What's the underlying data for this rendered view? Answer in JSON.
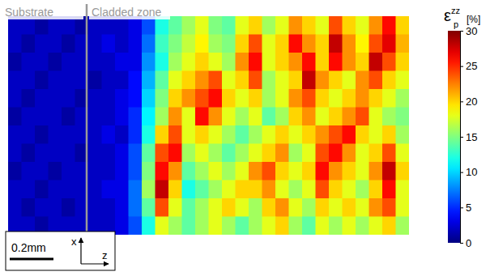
{
  "chart_data": {
    "type": "heatmap",
    "tick_labels": false,
    "cells": [
      [
        2,
        2,
        1,
        2,
        2,
        1,
        2,
        2,
        2,
        3,
        6,
        12,
        14,
        16,
        18,
        15,
        14,
        18,
        20,
        16,
        18,
        22,
        20,
        18,
        24,
        20,
        18,
        22,
        26,
        20
      ],
      [
        2,
        1,
        2,
        2,
        1,
        2,
        2,
        3,
        2,
        3,
        7,
        13,
        15,
        17,
        19,
        16,
        15,
        20,
        24,
        18,
        20,
        26,
        22,
        20,
        28,
        22,
        19,
        24,
        27,
        21
      ],
      [
        1,
        2,
        2,
        1,
        2,
        2,
        2,
        2,
        3,
        3,
        8,
        12,
        16,
        18,
        20,
        18,
        16,
        22,
        26,
        18,
        20,
        22,
        26,
        20,
        26,
        22,
        20,
        28,
        24,
        20
      ],
      [
        2,
        2,
        1,
        2,
        2,
        2,
        1,
        2,
        2,
        4,
        9,
        14,
        18,
        20,
        22,
        24,
        18,
        20,
        24,
        16,
        18,
        20,
        28,
        22,
        20,
        18,
        22,
        24,
        20,
        18
      ],
      [
        2,
        1,
        2,
        2,
        2,
        1,
        2,
        2,
        3,
        4,
        10,
        15,
        20,
        22,
        24,
        26,
        20,
        18,
        20,
        16,
        18,
        22,
        24,
        20,
        18,
        20,
        22,
        20,
        18,
        16
      ],
      [
        1,
        2,
        2,
        2,
        1,
        2,
        2,
        2,
        3,
        5,
        11,
        16,
        22,
        18,
        26,
        22,
        18,
        16,
        18,
        14,
        16,
        20,
        22,
        18,
        20,
        22,
        24,
        18,
        16,
        15
      ],
      [
        2,
        2,
        1,
        2,
        2,
        2,
        2,
        3,
        2,
        5,
        12,
        20,
        24,
        18,
        20,
        18,
        16,
        14,
        16,
        18,
        20,
        18,
        20,
        22,
        24,
        26,
        20,
        18,
        20,
        16
      ],
      [
        2,
        1,
        2,
        2,
        2,
        1,
        2,
        2,
        3,
        6,
        14,
        24,
        26,
        16,
        18,
        16,
        14,
        16,
        18,
        20,
        22,
        16,
        18,
        24,
        26,
        22,
        18,
        20,
        24,
        18
      ],
      [
        1,
        2,
        2,
        1,
        2,
        2,
        2,
        2,
        3,
        6,
        15,
        26,
        22,
        14,
        16,
        18,
        16,
        18,
        22,
        24,
        20,
        18,
        20,
        26,
        22,
        20,
        18,
        22,
        28,
        20
      ],
      [
        2,
        2,
        1,
        2,
        2,
        2,
        2,
        3,
        3,
        7,
        16,
        28,
        20,
        12,
        14,
        16,
        18,
        20,
        20,
        22,
        18,
        16,
        18,
        24,
        20,
        18,
        16,
        20,
        26,
        18
      ],
      [
        2,
        1,
        2,
        2,
        1,
        2,
        2,
        2,
        3,
        7,
        14,
        24,
        18,
        14,
        16,
        18,
        20,
        18,
        16,
        20,
        22,
        18,
        16,
        20,
        18,
        20,
        18,
        22,
        24,
        18
      ],
      [
        2,
        2,
        1,
        2,
        2,
        2,
        2,
        2,
        3,
        6,
        12,
        18,
        16,
        14,
        16,
        18,
        16,
        14,
        16,
        18,
        20,
        16,
        14,
        18,
        16,
        18,
        16,
        18,
        20,
        16
      ]
    ],
    "colorbar_range": [
      0,
      30
    ],
    "colorbar_ticks": [
      0,
      5,
      10,
      15,
      20,
      25,
      30
    ],
    "colorbar_title": {
      "base": "ε",
      "sub": "p",
      "sup": "zz",
      "unit": "[%]"
    },
    "annotations": {
      "left_region": "Substrate",
      "right_region": "Cladded zone",
      "scale_bar": "0.2mm",
      "axis_x": "x",
      "axis_z": "z"
    }
  }
}
